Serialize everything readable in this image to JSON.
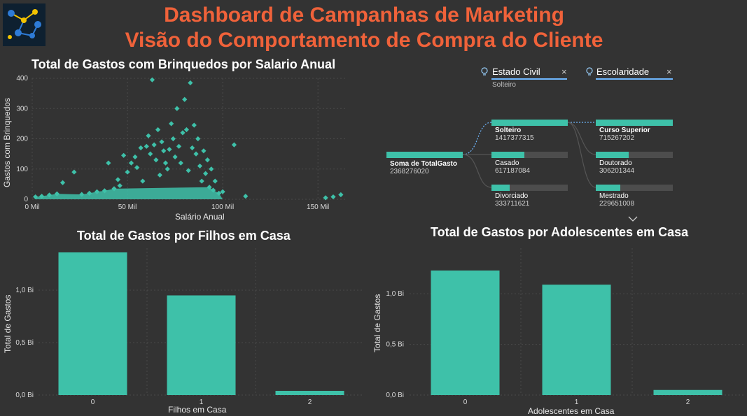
{
  "header": {
    "title_line1": "Dashboard de Campanhas de Marketing",
    "title_line2": "Visão do Comportamento de Compra do Cliente"
  },
  "colors": {
    "accent": "#3ec1a9",
    "title": "#f0623a",
    "background": "#333333",
    "bar_track": "#4d4d4d"
  },
  "scatter": {
    "title": "Total de Gastos com Brinquedos por Salario Anual",
    "xlabel": "Salário Anual",
    "ylabel": "Gastos com Brinquedos",
    "xticks": [
      "0 Mil",
      "50 Mil",
      "100 Mil",
      "150 Mil"
    ],
    "yticks": [
      "0",
      "100",
      "200",
      "300",
      "400"
    ]
  },
  "decomp_tree": {
    "filters": [
      {
        "label": "Estado Civil",
        "selected": "Solteiro",
        "icon": "lightbulb-icon"
      },
      {
        "label": "Escolaridade",
        "selected": "",
        "icon": "lightbulb-icon"
      }
    ],
    "root": {
      "label": "Soma de TotalGasto",
      "value": "2368276020",
      "fraction": 1.0
    },
    "level1": [
      {
        "label": "Solteiro",
        "value": "1417377315",
        "fraction": 1.0,
        "selected": true
      },
      {
        "label": "Casado",
        "value": "617187084",
        "fraction": 0.435
      },
      {
        "label": "Divorciado",
        "value": "333711621",
        "fraction": 0.235
      }
    ],
    "level2": [
      {
        "label": "Curso Superior",
        "value": "715267202",
        "fraction": 1.0,
        "selected": true
      },
      {
        "label": "Doutorado",
        "value": "306201344",
        "fraction": 0.428
      },
      {
        "label": "Mestrado",
        "value": "229651008",
        "fraction": 0.321
      }
    ]
  },
  "chart_data": [
    {
      "type": "scatter",
      "title": "Total de Gastos com Brinquedos por Salario Anual",
      "xlabel": "Salário Anual",
      "ylabel": "Gastos com Brinquedos",
      "xlim": [
        0,
        165000
      ],
      "ylim": [
        0,
        400
      ],
      "x_tick_labels": [
        "0 Mil",
        "50 Mil",
        "100 Mil",
        "150 Mil"
      ],
      "y_tick_labels": [
        "0",
        "100",
        "200",
        "300",
        "400"
      ],
      "grid": true,
      "points": [
        [
          1700,
          8
        ],
        [
          5000,
          10
        ],
        [
          9000,
          14
        ],
        [
          13000,
          18
        ],
        [
          16000,
          55
        ],
        [
          22000,
          90
        ],
        [
          26000,
          16
        ],
        [
          30000,
          20
        ],
        [
          34000,
          25
        ],
        [
          38000,
          28
        ],
        [
          40000,
          120
        ],
        [
          43000,
          35
        ],
        [
          45000,
          65
        ],
        [
          46000,
          45
        ],
        [
          48000,
          145
        ],
        [
          50000,
          90
        ],
        [
          52000,
          120
        ],
        [
          54000,
          140
        ],
        [
          55000,
          105
        ],
        [
          57000,
          170
        ],
        [
          58000,
          60
        ],
        [
          60000,
          175
        ],
        [
          61000,
          210
        ],
        [
          62000,
          150
        ],
        [
          63000,
          395
        ],
        [
          64000,
          180
        ],
        [
          65000,
          130
        ],
        [
          66000,
          230
        ],
        [
          67000,
          80
        ],
        [
          68000,
          190
        ],
        [
          69000,
          160
        ],
        [
          70000,
          120
        ],
        [
          71000,
          100
        ],
        [
          72000,
          165
        ],
        [
          73000,
          250
        ],
        [
          74000,
          200
        ],
        [
          75000,
          140
        ],
        [
          76000,
          300
        ],
        [
          77000,
          175
        ],
        [
          78000,
          120
        ],
        [
          79000,
          220
        ],
        [
          80000,
          330
        ],
        [
          81000,
          230
        ],
        [
          82000,
          95
        ],
        [
          83000,
          385
        ],
        [
          84000,
          170
        ],
        [
          85000,
          245
        ],
        [
          86000,
          150
        ],
        [
          87000,
          200
        ],
        [
          88000,
          110
        ],
        [
          89000,
          60
        ],
        [
          90000,
          160
        ],
        [
          91000,
          85
        ],
        [
          92000,
          130
        ],
        [
          93000,
          40
        ],
        [
          94000,
          100
        ],
        [
          95000,
          30
        ],
        [
          96000,
          60
        ],
        [
          98000,
          20
        ],
        [
          100000,
          25
        ],
        [
          106000,
          180
        ],
        [
          112000,
          10
        ],
        [
          154000,
          5
        ],
        [
          158000,
          8
        ],
        [
          162000,
          15
        ]
      ]
    },
    {
      "type": "bar",
      "title": "Total de Gastos por Filhos em Casa",
      "xlabel": "Filhos em Casa",
      "ylabel": "Total de Gastos",
      "categories": [
        "0",
        "1",
        "2"
      ],
      "values": [
        1.36,
        0.95,
        0.04
      ],
      "unit": "Bi",
      "ylim": [
        0,
        1.4
      ],
      "y_tick_labels": [
        "0,0 Bi",
        "0,5 Bi",
        "1,0 Bi"
      ],
      "grid": true
    },
    {
      "type": "bar",
      "title": "Total de Gastos por Adolescentes em Casa",
      "xlabel": "Adolescentes em Casa",
      "ylabel": "Total de Gastos",
      "categories": [
        "0",
        "1",
        "2"
      ],
      "values": [
        1.23,
        1.09,
        0.05
      ],
      "unit": "Bi",
      "ylim": [
        0,
        1.45
      ],
      "y_tick_labels": [
        "0,0 Bi",
        "0,5 Bi",
        "1,0 Bi"
      ],
      "grid": true
    }
  ]
}
